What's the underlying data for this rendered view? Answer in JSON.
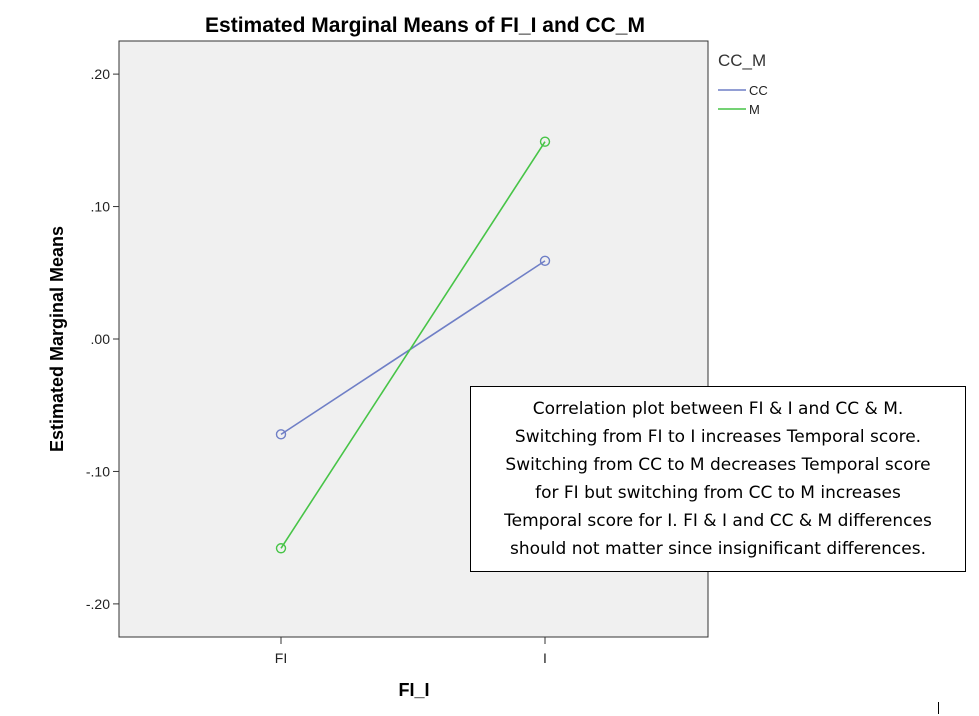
{
  "chart_data": {
    "type": "line",
    "title": "Estimated Marginal Means of FI_I and CC_M",
    "xlabel": "FI_I",
    "ylabel": "Estimated Marginal Means",
    "categories": [
      "FI",
      "I"
    ],
    "ylim": [
      -0.225,
      0.225
    ],
    "yticks": [
      0.2,
      0.1,
      0.0,
      -0.1,
      -0.2
    ],
    "ytick_labels": [
      ".20",
      ".10",
      ".00",
      "-.10",
      "-.20"
    ],
    "grid": false,
    "legend_title": "CC_M",
    "legend_position": "outside-top-right",
    "series": [
      {
        "name": "CC",
        "color": "#6F7FC6",
        "values": [
          -0.072,
          0.059
        ]
      },
      {
        "name": "M",
        "color": "#47C447",
        "values": [
          -0.158,
          0.149
        ]
      }
    ],
    "plot_background": "#F0F0F0"
  },
  "annotation": {
    "lines": [
      "Correlation plot between FI & I and CC & M.",
      "Switching from FI to I increases Temporal score.",
      "Switching from CC to M decreases Temporal score",
      "for FI but switching from CC to M increases",
      "Temporal score for I. FI & I and CC & M differences",
      "should not matter since insignificant differences."
    ]
  }
}
